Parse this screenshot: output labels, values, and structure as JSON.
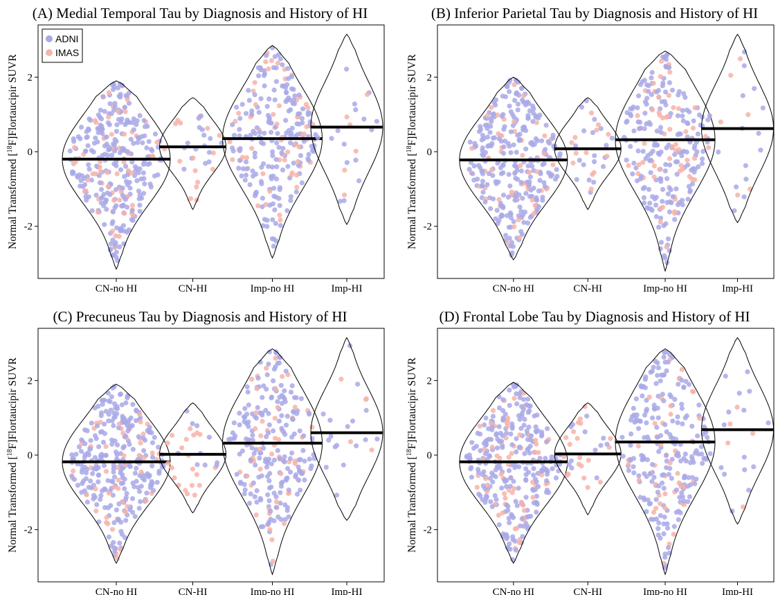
{
  "figure": {
    "ylabel": "Normal Transformed [18F]Flortaucipir SUVR",
    "ylabel_parts": [
      "Normal Transformed [",
      "18",
      "F]Flortaucipir SUVR"
    ],
    "legend": [
      {
        "name": "ADNI",
        "color": "#a9a9e8"
      },
      {
        "name": "IMAS",
        "color": "#f7b3a8"
      }
    ],
    "colors": {
      "adni": "#a9a9e8",
      "imas": "#f7b3a8",
      "median": "#000000",
      "violin": "#000000"
    }
  },
  "chart_data": [
    {
      "type": "violin",
      "title": "(A) Medial Temporal Tau by Diagnosis and History of HI",
      "categories": [
        "CN-no HI",
        "CN-HI",
        "Imp-no HI",
        "Imp-HI"
      ],
      "yticks": [
        -2,
        0,
        2
      ],
      "ylim": [
        -3.4,
        3.4
      ],
      "medians": [
        -0.2,
        0.13,
        0.35,
        0.66
      ],
      "ranges": [
        [
          -3.15,
          1.9
        ],
        [
          -1.55,
          1.45
        ],
        [
          -2.85,
          2.85
        ],
        [
          -1.95,
          3.15
        ]
      ],
      "legend_position": "top-left"
    },
    {
      "type": "violin",
      "title": "(B) Inferior Parietal Tau by Diagnosis and History of HI",
      "categories": [
        "CN-no HI",
        "CN-HI",
        "Imp-no HI",
        "Imp-HI"
      ],
      "yticks": [
        -2,
        0,
        2
      ],
      "ylim": [
        -3.4,
        3.4
      ],
      "medians": [
        -0.22,
        0.08,
        0.32,
        0.62
      ],
      "ranges": [
        [
          -2.9,
          2.0
        ],
        [
          -1.55,
          1.45
        ],
        [
          -3.2,
          2.7
        ],
        [
          -1.9,
          3.15
        ]
      ]
    },
    {
      "type": "violin",
      "title": "(C) Precuneus Tau by Diagnosis and History of HI",
      "categories": [
        "CN-no HI",
        "CN-HI",
        "Imp-no HI",
        "Imp-HI"
      ],
      "yticks": [
        -2,
        0,
        2
      ],
      "ylim": [
        -3.4,
        3.4
      ],
      "medians": [
        -0.18,
        0.02,
        0.32,
        0.6
      ],
      "ranges": [
        [
          -2.9,
          1.9
        ],
        [
          -1.55,
          1.4
        ],
        [
          -3.2,
          2.85
        ],
        [
          -1.75,
          3.15
        ]
      ]
    },
    {
      "type": "violin",
      "title": "(D) Frontal Lobe Tau by Diagnosis and History of HI",
      "categories": [
        "CN-no HI",
        "CN-HI",
        "Imp-no HI",
        "Imp-HI"
      ],
      "yticks": [
        -2,
        0,
        2
      ],
      "ylim": [
        -3.4,
        3.4
      ],
      "medians": [
        -0.18,
        0.03,
        0.35,
        0.68
      ],
      "ranges": [
        [
          -2.9,
          1.95
        ],
        [
          -1.6,
          1.4
        ],
        [
          -3.2,
          2.85
        ],
        [
          -1.85,
          3.15
        ]
      ]
    }
  ]
}
